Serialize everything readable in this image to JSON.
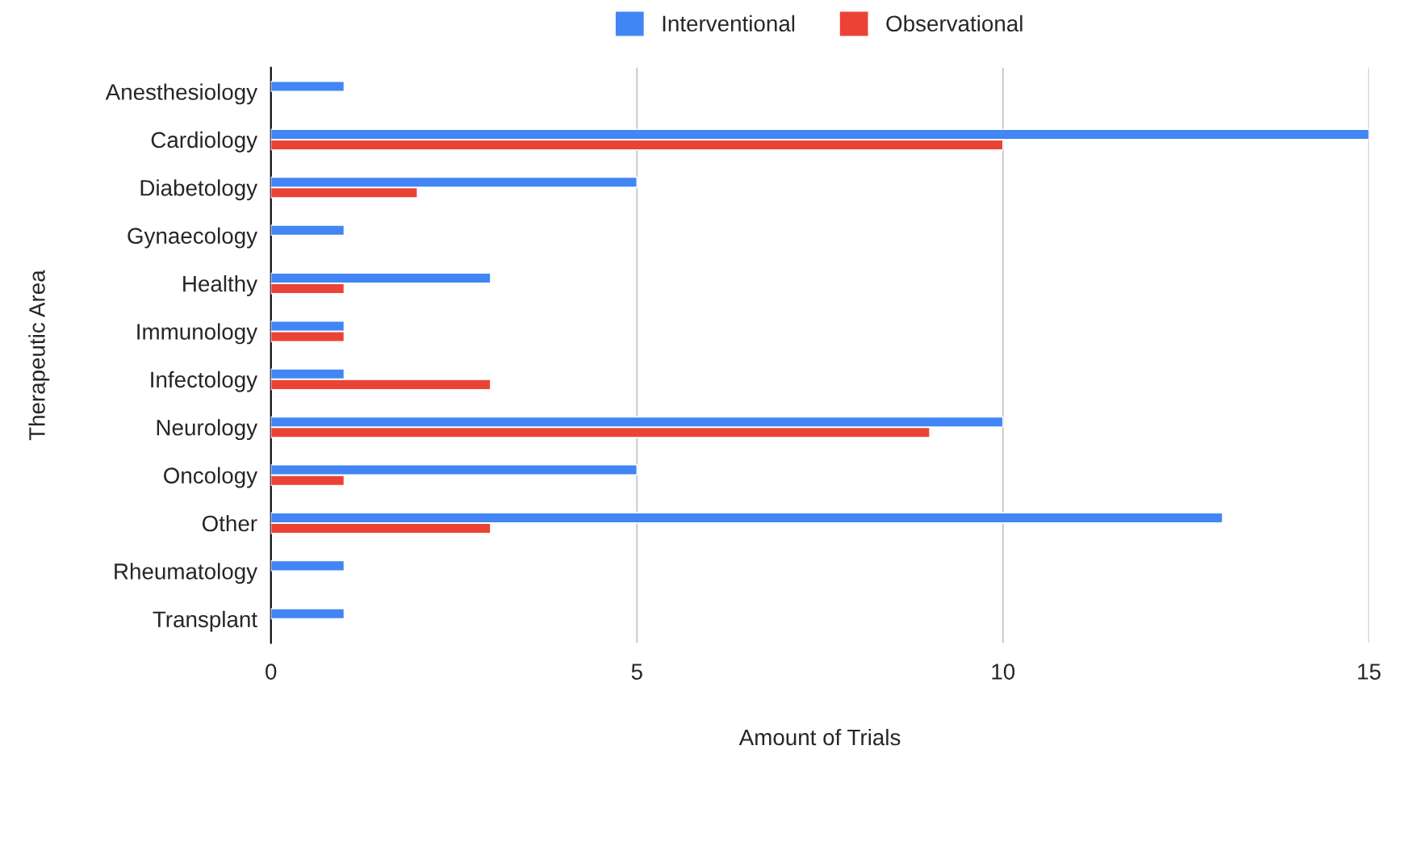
{
  "chart_data": {
    "type": "bar",
    "orientation": "horizontal",
    "xlabel": "Amount of Trials",
    "ylabel": "Therapeutic Area",
    "categories": [
      "Anesthesiology",
      "Cardiology",
      "Diabetology",
      "Gynaecology",
      "Healthy",
      "Immunology",
      "Infectology",
      "Neurology",
      "Oncology",
      "Other",
      "Rheumatology",
      "Transplant"
    ],
    "series": [
      {
        "name": "Interventional",
        "color": "#4285f4",
        "values": [
          1,
          15,
          5,
          1,
          3,
          1,
          1,
          10,
          5,
          13,
          1,
          1
        ]
      },
      {
        "name": "Observational",
        "color": "#ea4335",
        "values": [
          null,
          10,
          2,
          null,
          1,
          1,
          3,
          9,
          1,
          3,
          null,
          null
        ]
      }
    ],
    "xlim": [
      0,
      15
    ],
    "xticks": [
      0,
      5,
      10,
      15
    ],
    "grid": "x",
    "legend": "top"
  }
}
